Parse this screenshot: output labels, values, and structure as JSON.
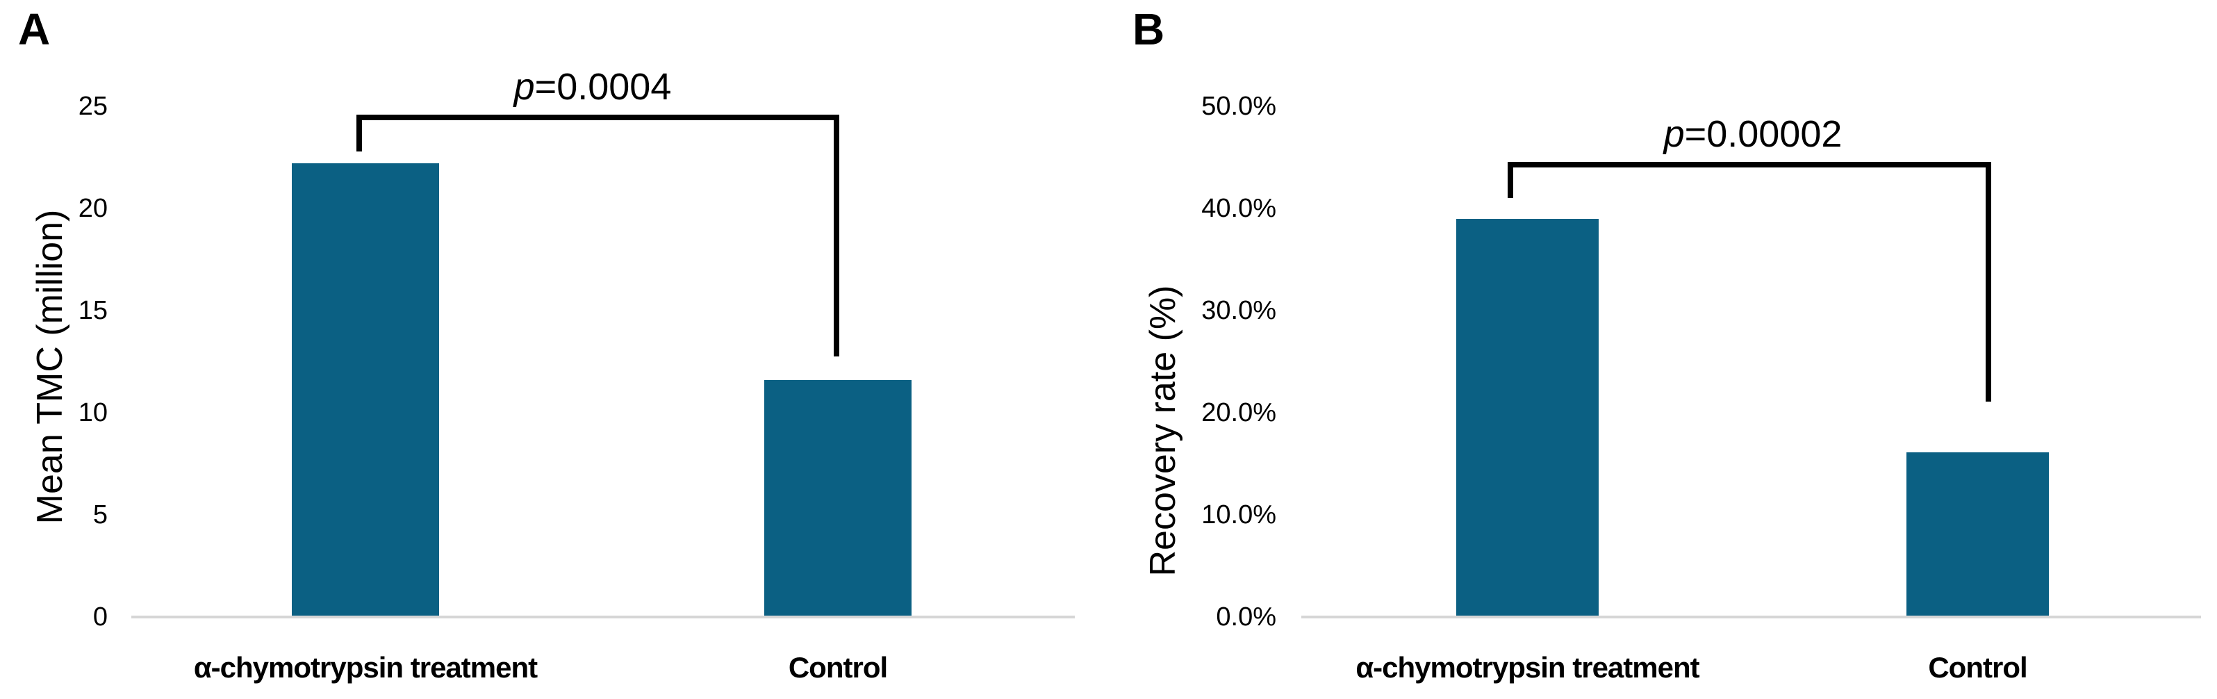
{
  "figure": {
    "panels": [
      {
        "label": "A",
        "y_axis_title": "Mean TMC (million)",
        "y_tick_labels": [
          "25",
          "20",
          "15",
          "10",
          "5",
          "0"
        ],
        "x_labels": [
          "α-chymotrypsin treatment",
          "Control"
        ],
        "p_value": "p=0.0004"
      },
      {
        "label": "B",
        "y_axis_title": "Recovery rate (%)",
        "y_tick_labels": [
          "50.0%",
          "40.0%",
          "30.0%",
          "20.0%",
          "10.0%",
          "0.0%"
        ],
        "x_labels": [
          "α-chymotrypsin treatment",
          "Control"
        ],
        "p_value": "p=0.00002"
      }
    ],
    "colors": {
      "bar": "#0B6083",
      "axis_line": "#D6D6D6",
      "bracket": "#000000",
      "text": "#000000",
      "background": "#FFFFFF"
    }
  },
  "chart_data": [
    {
      "type": "bar",
      "panel": "A",
      "categories": [
        "α-chymotrypsin treatment",
        "Control"
      ],
      "values": [
        22.2,
        11.6
      ],
      "ylabel": "Mean TMC (million)",
      "ylim": [
        0,
        25
      ],
      "ytick_step": 5,
      "ytick_labels": [
        "25",
        "20",
        "15",
        "10",
        "5",
        "0"
      ],
      "grid": false,
      "legend": null,
      "bar_color": "#0B6083",
      "annotation": "p=0.0004",
      "annotation_connects": [
        "α-chymotrypsin treatment",
        "Control"
      ]
    },
    {
      "type": "bar",
      "panel": "B",
      "categories": [
        "α-chymotrypsin treatment",
        "Control"
      ],
      "values": [
        39.0,
        16.1
      ],
      "value_unit": "%",
      "ylabel": "Recovery rate (%)",
      "ylim": [
        0,
        50
      ],
      "ytick_step": 10,
      "ytick_labels": [
        "50.0%",
        "40.0%",
        "30.0%",
        "20.0%",
        "10.0%",
        "0.0%"
      ],
      "grid": false,
      "legend": null,
      "bar_color": "#0B6083",
      "annotation": "p=0.00002",
      "annotation_connects": [
        "α-chymotrypsin treatment",
        "Control"
      ]
    }
  ]
}
